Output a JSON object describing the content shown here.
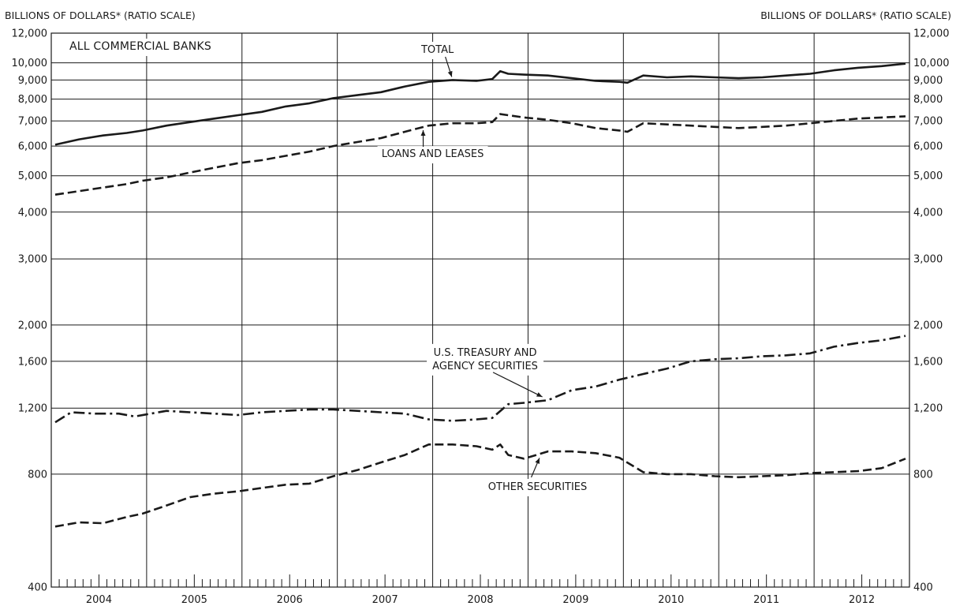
{
  "chart_data": {
    "type": "line",
    "ylabel_left": "BILLIONS OF DOLLARS* (RATIO SCALE)",
    "ylabel_right": "BILLIONS OF DOLLARS* (RATIO SCALE)",
    "panel_title": "ALL COMMERCIAL BANKS",
    "y_scale": "log",
    "ylim": [
      400,
      12000
    ],
    "xlim": [
      "2004-01",
      "2012-12"
    ],
    "y_ticks": [
      400,
      800,
      1200,
      1600,
      2000,
      3000,
      4000,
      5000,
      6000,
      7000,
      8000,
      9000,
      10000,
      12000
    ],
    "y_tick_labels": [
      "400",
      "800",
      "1,200",
      "1,600",
      "2,000",
      "3,000",
      "4,000",
      "5,000",
      "6,000",
      "7,000",
      "8,000",
      "9,000",
      "10,000",
      "12,000"
    ],
    "x_tick_labels": [
      "2004",
      "2005",
      "2006",
      "2007",
      "2008",
      "2009",
      "2010",
      "2011",
      "2012"
    ],
    "grid": true,
    "series": [
      {
        "name": "TOTAL",
        "line_style": "solid",
        "label_lines": [
          "TOTAL"
        ],
        "values": [
          [
            "2004-01",
            6050
          ],
          [
            "2004-04",
            6250
          ],
          [
            "2004-07",
            6400
          ],
          [
            "2004-10",
            6500
          ],
          [
            "2004-12",
            6600
          ],
          [
            "2005-03",
            6800
          ],
          [
            "2005-06",
            6950
          ],
          [
            "2005-09",
            7100
          ],
          [
            "2005-12",
            7250
          ],
          [
            "2006-03",
            7400
          ],
          [
            "2006-06",
            7650
          ],
          [
            "2006-09",
            7800
          ],
          [
            "2006-12",
            8050
          ],
          [
            "2007-03",
            8200
          ],
          [
            "2007-06",
            8350
          ],
          [
            "2007-09",
            8650
          ],
          [
            "2007-12",
            8900
          ],
          [
            "2008-03",
            9000
          ],
          [
            "2008-06",
            8950
          ],
          [
            "2008-08",
            9050
          ],
          [
            "2008-09",
            9500
          ],
          [
            "2008-10",
            9350
          ],
          [
            "2008-12",
            9300
          ],
          [
            "2009-03",
            9250
          ],
          [
            "2009-06",
            9100
          ],
          [
            "2009-09",
            8950
          ],
          [
            "2009-12",
            8900
          ],
          [
            "2010-01",
            8850
          ],
          [
            "2010-03",
            9250
          ],
          [
            "2010-06",
            9150
          ],
          [
            "2010-09",
            9200
          ],
          [
            "2010-12",
            9150
          ],
          [
            "2011-03",
            9100
          ],
          [
            "2011-06",
            9150
          ],
          [
            "2011-09",
            9250
          ],
          [
            "2011-12",
            9350
          ],
          [
            "2012-03",
            9550
          ],
          [
            "2012-06",
            9700
          ],
          [
            "2012-09",
            9800
          ],
          [
            "2012-12",
            9950
          ]
        ]
      },
      {
        "name": "LOANS AND LEASES",
        "line_style": "dashed",
        "label_lines": [
          "LOANS AND LEASES"
        ],
        "values": [
          [
            "2004-01",
            4450
          ],
          [
            "2004-04",
            4550
          ],
          [
            "2004-07",
            4650
          ],
          [
            "2004-10",
            4750
          ],
          [
            "2004-12",
            4850
          ],
          [
            "2005-03",
            4950
          ],
          [
            "2005-06",
            5100
          ],
          [
            "2005-09",
            5250
          ],
          [
            "2005-12",
            5400
          ],
          [
            "2006-03",
            5500
          ],
          [
            "2006-06",
            5650
          ],
          [
            "2006-09",
            5800
          ],
          [
            "2006-12",
            6000
          ],
          [
            "2007-03",
            6150
          ],
          [
            "2007-06",
            6300
          ],
          [
            "2007-09",
            6550
          ],
          [
            "2007-12",
            6800
          ],
          [
            "2008-03",
            6900
          ],
          [
            "2008-06",
            6900
          ],
          [
            "2008-08",
            6950
          ],
          [
            "2008-09",
            7300
          ],
          [
            "2008-10",
            7250
          ],
          [
            "2008-12",
            7150
          ],
          [
            "2009-03",
            7050
          ],
          [
            "2009-06",
            6900
          ],
          [
            "2009-09",
            6700
          ],
          [
            "2009-12",
            6600
          ],
          [
            "2010-01",
            6550
          ],
          [
            "2010-03",
            6900
          ],
          [
            "2010-06",
            6850
          ],
          [
            "2010-09",
            6800
          ],
          [
            "2010-12",
            6750
          ],
          [
            "2011-03",
            6700
          ],
          [
            "2011-06",
            6750
          ],
          [
            "2011-09",
            6800
          ],
          [
            "2011-12",
            6900
          ],
          [
            "2012-03",
            7000
          ],
          [
            "2012-06",
            7100
          ],
          [
            "2012-09",
            7150
          ],
          [
            "2012-12",
            7200
          ]
        ]
      },
      {
        "name": "U.S. TREASURY AND AGENCY SECURITIES",
        "line_style": "dash-dot",
        "label_lines": [
          "U.S. TREASURY AND",
          "AGENCY SECURITIES"
        ],
        "values": [
          [
            "2004-01",
            1100
          ],
          [
            "2004-03",
            1170
          ],
          [
            "2004-06",
            1160
          ],
          [
            "2004-09",
            1160
          ],
          [
            "2004-11",
            1140
          ],
          [
            "2005-03",
            1180
          ],
          [
            "2005-06",
            1170
          ],
          [
            "2005-09",
            1160
          ],
          [
            "2005-12",
            1150
          ],
          [
            "2006-03",
            1170
          ],
          [
            "2006-06",
            1180
          ],
          [
            "2006-09",
            1190
          ],
          [
            "2006-12",
            1190
          ],
          [
            "2007-03",
            1180
          ],
          [
            "2007-06",
            1170
          ],
          [
            "2007-09",
            1160
          ],
          [
            "2007-12",
            1120
          ],
          [
            "2008-03",
            1110
          ],
          [
            "2008-06",
            1120
          ],
          [
            "2008-08",
            1130
          ],
          [
            "2008-10",
            1230
          ],
          [
            "2008-12",
            1240
          ],
          [
            "2009-03",
            1260
          ],
          [
            "2009-06",
            1340
          ],
          [
            "2009-09",
            1370
          ],
          [
            "2009-12",
            1430
          ],
          [
            "2010-03",
            1480
          ],
          [
            "2010-06",
            1530
          ],
          [
            "2010-09",
            1600
          ],
          [
            "2010-12",
            1620
          ],
          [
            "2011-03",
            1630
          ],
          [
            "2011-06",
            1650
          ],
          [
            "2011-09",
            1660
          ],
          [
            "2011-12",
            1680
          ],
          [
            "2012-03",
            1750
          ],
          [
            "2012-06",
            1790
          ],
          [
            "2012-09",
            1820
          ],
          [
            "2012-12",
            1870
          ]
        ]
      },
      {
        "name": "OTHER SECURITIES",
        "line_style": "dashed",
        "label_lines": [
          "OTHER SECURITIES"
        ],
        "values": [
          [
            "2004-01",
            580
          ],
          [
            "2004-04",
            595
          ],
          [
            "2004-07",
            592
          ],
          [
            "2004-10",
            615
          ],
          [
            "2004-12",
            628
          ],
          [
            "2005-03",
            660
          ],
          [
            "2005-06",
            695
          ],
          [
            "2005-09",
            710
          ],
          [
            "2005-12",
            720
          ],
          [
            "2006-03",
            735
          ],
          [
            "2006-06",
            750
          ],
          [
            "2006-09",
            755
          ],
          [
            "2006-12",
            790
          ],
          [
            "2007-03",
            820
          ],
          [
            "2007-06",
            860
          ],
          [
            "2007-09",
            900
          ],
          [
            "2007-12",
            960
          ],
          [
            "2008-03",
            960
          ],
          [
            "2008-06",
            950
          ],
          [
            "2008-08",
            930
          ],
          [
            "2008-09",
            960
          ],
          [
            "2008-10",
            900
          ],
          [
            "2008-12",
            880
          ],
          [
            "2009-03",
            920
          ],
          [
            "2009-06",
            920
          ],
          [
            "2009-09",
            910
          ],
          [
            "2009-12",
            885
          ],
          [
            "2010-03",
            810
          ],
          [
            "2010-06",
            800
          ],
          [
            "2010-09",
            800
          ],
          [
            "2010-12",
            790
          ],
          [
            "2011-03",
            785
          ],
          [
            "2011-06",
            790
          ],
          [
            "2011-09",
            795
          ],
          [
            "2011-12",
            805
          ],
          [
            "2012-03",
            810
          ],
          [
            "2012-06",
            815
          ],
          [
            "2012-09",
            830
          ],
          [
            "2012-12",
            880
          ]
        ]
      }
    ]
  }
}
